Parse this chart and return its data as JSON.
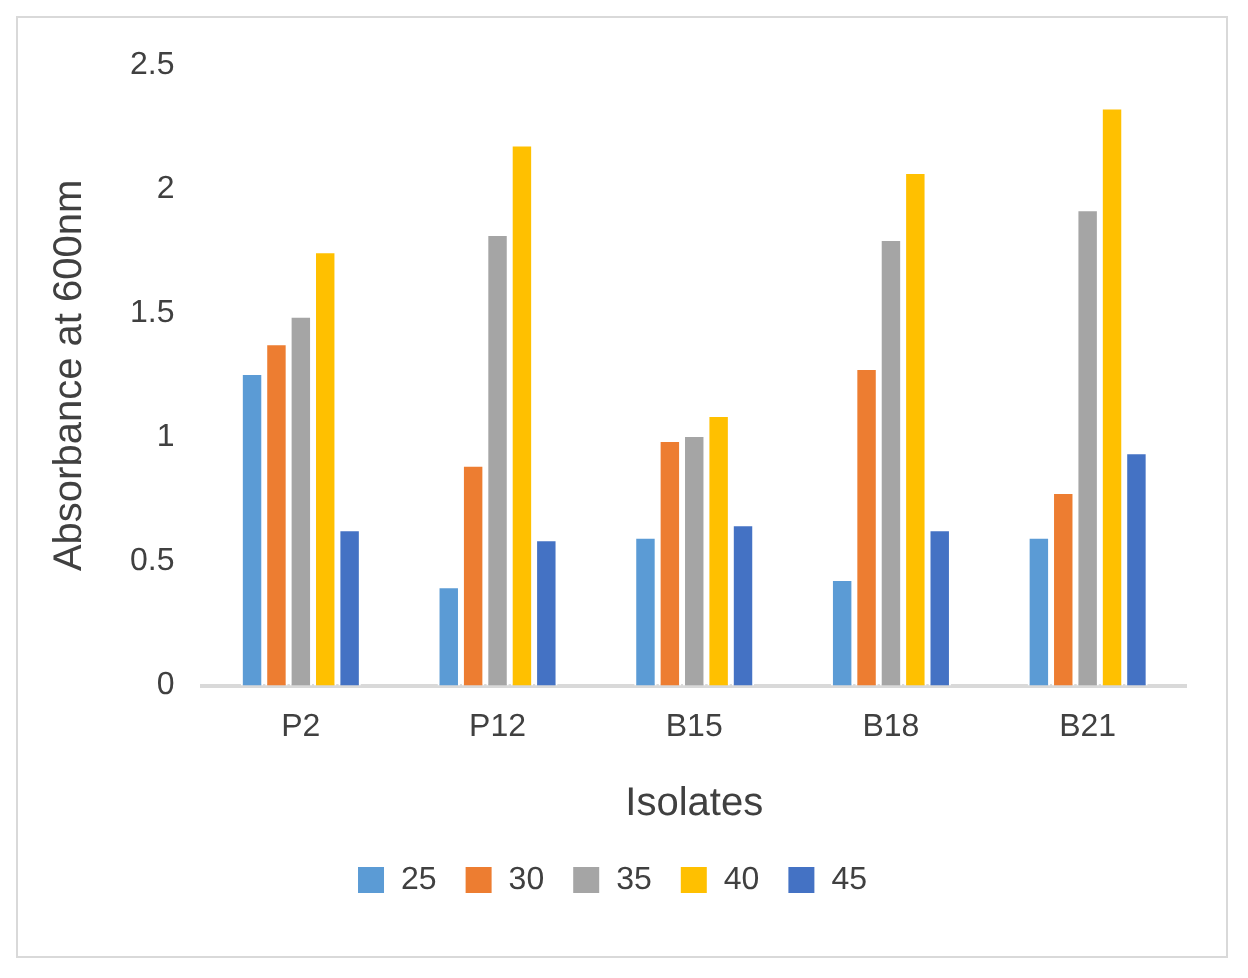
{
  "chart_data": {
    "type": "bar",
    "xlabel": "Isolates",
    "ylabel": "Absorbance at 600nm",
    "categories": [
      "P2",
      "P12",
      "B15",
      "B18",
      "B21"
    ],
    "series": [
      {
        "name": "25",
        "color": "#5b9bd5",
        "values": [
          1.26,
          0.4,
          0.6,
          0.43,
          0.6
        ]
      },
      {
        "name": "30",
        "color": "#ed7d31",
        "values": [
          1.38,
          0.89,
          0.99,
          1.28,
          0.78
        ]
      },
      {
        "name": "35",
        "color": "#a5a5a5",
        "values": [
          1.49,
          1.82,
          1.01,
          1.8,
          1.92
        ]
      },
      {
        "name": "40",
        "color": "#ffc000",
        "values": [
          1.75,
          2.18,
          1.09,
          2.07,
          2.33
        ]
      },
      {
        "name": "45",
        "color": "#4472c4",
        "values": [
          0.63,
          0.59,
          0.65,
          0.63,
          0.94
        ]
      }
    ],
    "ylim": [
      0,
      2.5
    ],
    "yticks": [
      0,
      0.5,
      1,
      1.5,
      2,
      2.5
    ],
    "grid": false,
    "legend": "bottom"
  }
}
